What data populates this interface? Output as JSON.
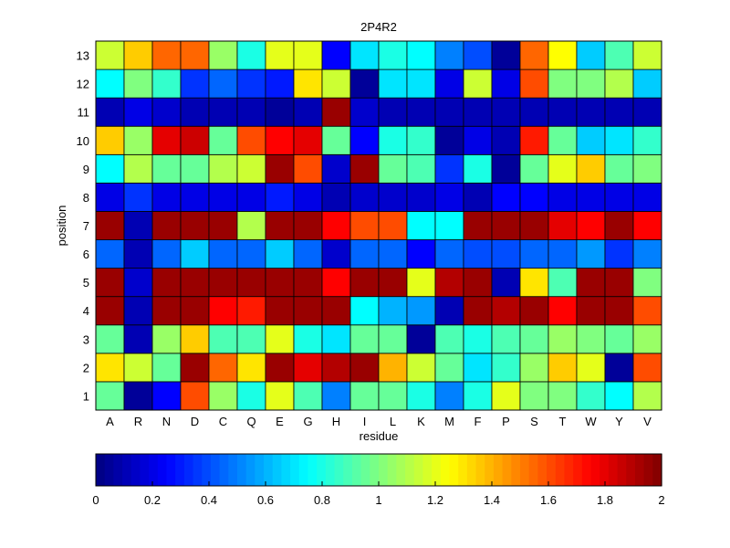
{
  "chart_data": {
    "type": "heatmap",
    "title": "2P4R2",
    "xlabel": "residue",
    "ylabel": "position",
    "x_categories": [
      "A",
      "R",
      "N",
      "D",
      "C",
      "Q",
      "E",
      "G",
      "H",
      "I",
      "L",
      "K",
      "M",
      "F",
      "P",
      "S",
      "T",
      "W",
      "Y",
      "V"
    ],
    "y_categories": [
      "1",
      "2",
      "3",
      "4",
      "5",
      "6",
      "7",
      "8",
      "9",
      "10",
      "11",
      "12",
      "13"
    ],
    "values": [
      [
        0.95,
        0.05,
        0.25,
        1.6,
        1.05,
        0.8,
        1.2,
        0.9,
        0.5,
        0.95,
        0.95,
        0.8,
        0.5,
        0.8,
        1.2,
        1.0,
        1.0,
        0.85,
        0.75,
        1.1
      ],
      [
        1.3,
        1.15,
        0.95,
        1.95,
        1.55,
        1.3,
        1.95,
        1.8,
        1.9,
        1.95,
        1.4,
        1.15,
        0.95,
        0.7,
        0.85,
        1.05,
        1.35,
        1.2,
        0.05,
        1.6
      ],
      [
        0.95,
        0.1,
        1.05,
        1.35,
        0.9,
        0.9,
        1.2,
        0.8,
        0.7,
        0.95,
        0.95,
        0.05,
        0.9,
        0.8,
        0.9,
        0.95,
        1.05,
        1.0,
        0.95,
        1.05
      ],
      [
        1.95,
        0.1,
        1.95,
        1.95,
        1.75,
        1.7,
        1.95,
        1.95,
        1.95,
        0.75,
        0.6,
        0.55,
        0.1,
        1.95,
        1.9,
        1.95,
        1.75,
        1.95,
        1.95,
        1.6
      ],
      [
        1.95,
        0.15,
        1.95,
        1.95,
        1.95,
        1.95,
        1.95,
        1.95,
        1.75,
        1.95,
        1.95,
        1.2,
        1.9,
        1.95,
        0.1,
        1.3,
        0.9,
        1.95,
        1.95,
        1.0
      ],
      [
        0.45,
        0.1,
        0.45,
        0.65,
        0.45,
        0.45,
        0.65,
        0.45,
        0.15,
        0.45,
        0.45,
        0.25,
        0.45,
        0.4,
        0.4,
        0.45,
        0.45,
        0.55,
        0.35,
        0.5
      ],
      [
        1.95,
        0.1,
        1.95,
        1.95,
        1.95,
        1.1,
        1.95,
        1.95,
        1.75,
        1.6,
        1.6,
        0.75,
        0.75,
        1.95,
        1.95,
        1.95,
        1.8,
        1.75,
        1.95,
        1.75
      ],
      [
        0.2,
        0.35,
        0.2,
        0.2,
        0.2,
        0.2,
        0.3,
        0.2,
        0.1,
        0.15,
        0.15,
        0.15,
        0.2,
        0.1,
        0.25,
        0.25,
        0.2,
        0.2,
        0.2,
        0.2
      ],
      [
        0.75,
        1.1,
        0.95,
        0.95,
        1.1,
        1.15,
        1.95,
        1.6,
        0.15,
        1.95,
        0.95,
        0.9,
        0.35,
        0.8,
        0.05,
        0.95,
        1.2,
        1.35,
        0.95,
        1.0
      ],
      [
        1.35,
        1.05,
        1.8,
        1.85,
        0.95,
        1.6,
        1.75,
        1.8,
        0.95,
        0.25,
        0.8,
        0.85,
        0.05,
        0.2,
        0.1,
        1.7,
        0.95,
        0.65,
        0.7,
        0.85
      ],
      [
        0.1,
        0.2,
        0.15,
        0.1,
        0.1,
        0.1,
        0.05,
        0.1,
        1.95,
        0.15,
        0.1,
        0.1,
        0.1,
        0.1,
        0.1,
        0.1,
        0.1,
        0.1,
        0.1,
        0.1
      ],
      [
        0.75,
        1.0,
        0.85,
        0.35,
        0.45,
        0.35,
        0.3,
        1.3,
        1.15,
        0.05,
        0.7,
        0.7,
        0.2,
        1.15,
        0.2,
        1.6,
        1.0,
        1.0,
        1.1,
        0.65
      ],
      [
        1.15,
        1.35,
        1.55,
        1.55,
        1.05,
        0.8,
        1.2,
        1.2,
        0.25,
        0.7,
        0.8,
        0.75,
        0.5,
        0.4,
        0.05,
        1.55,
        1.25,
        0.65,
        0.9,
        1.15
      ]
    ],
    "colorbar": {
      "range": [
        0,
        2
      ],
      "ticks": [
        "0",
        "0.2",
        "0.4",
        "0.6",
        "0.8",
        "1",
        "1.2",
        "1.4",
        "1.6",
        "1.8",
        "2"
      ],
      "orientation": "horizontal",
      "colormap": "jet"
    }
  }
}
